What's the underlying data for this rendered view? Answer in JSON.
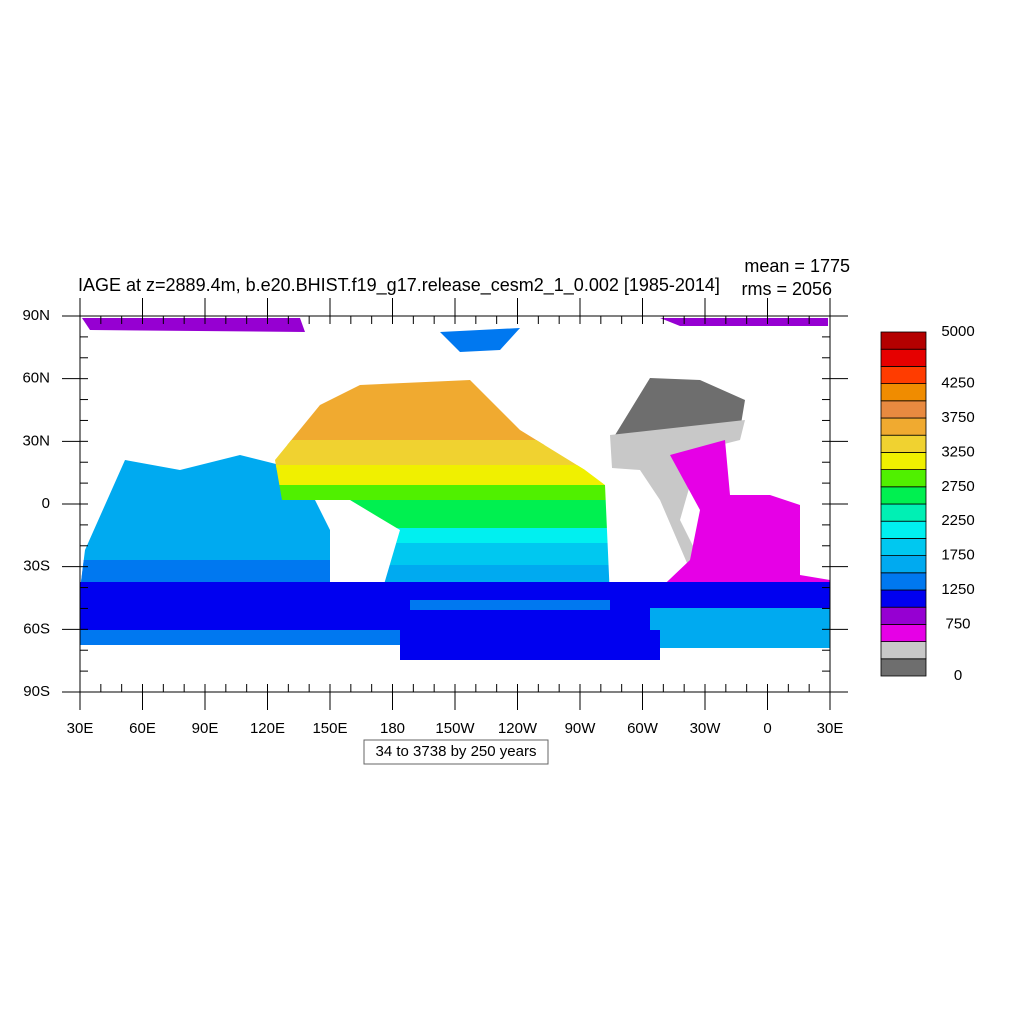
{
  "title": "IAGE at z=2889.4m, b.e20.BHIST.f19_g17.release_cesm2_1_0.002 [1985-2014]",
  "annotations": [
    "mean = 1775",
    "rms = 2056"
  ],
  "map": {
    "latlim": [
      -90,
      90
    ],
    "lat_ticks": [
      {
        "value": 90,
        "label": "90N"
      },
      {
        "value": 60,
        "label": "60N"
      },
      {
        "value": 30,
        "label": "30N"
      },
      0,
      {
        "value": -30,
        "label": "30S"
      },
      {
        "value": -60,
        "label": "60S"
      },
      {
        "value": -90,
        "label": "90S"
      }
    ],
    "lon_ticks": [
      {
        "value": 30,
        "label": "30E"
      },
      {
        "value": 60,
        "label": "60E"
      },
      {
        "value": 90,
        "label": "90E"
      },
      {
        "value": 120,
        "label": "120E"
      },
      {
        "value": 150,
        "label": "150E"
      },
      180,
      {
        "value": -150,
        "label": "150W"
      },
      {
        "value": -120,
        "label": "120W"
      },
      {
        "value": -90,
        "label": "90W"
      },
      {
        "value": -60,
        "label": "60W"
      },
      {
        "value": -30,
        "label": "30W"
      },
      0,
      {
        "value": 30,
        "label": "30E"
      }
    ]
  },
  "colorbar": {
    "lim": [
      0,
      5000
    ],
    "ticks": [
      0,
      750,
      1250,
      1750,
      2250,
      2750,
      3250,
      3750,
      4250,
      5000
    ],
    "colors": [
      "#6e6e6e",
      "#c8c8c8",
      "#e600e6",
      "#9600d2",
      "#0000f0",
      "#0078f0",
      "#00aaf0",
      "#00c8f0",
      "#00f0f0",
      "#00f0b4",
      "#00f050",
      "#50f000",
      "#f0f000",
      "#f0d230",
      "#f0aa30",
      "#e88a40",
      "#f08c00",
      "#ff3c00",
      "#e60000",
      "#b40000"
    ]
  },
  "info": "34 to 3738 by 250 years"
}
